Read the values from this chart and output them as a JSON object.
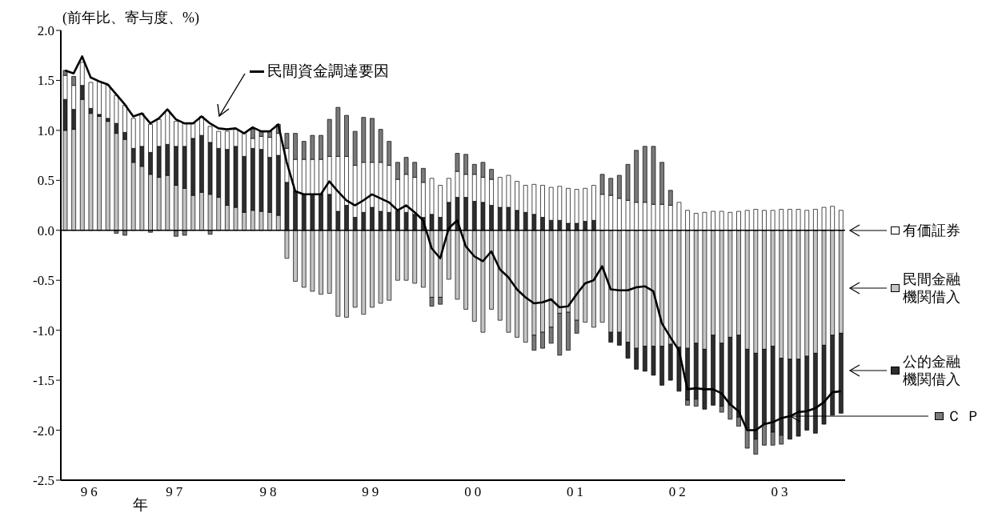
{
  "chart_data": {
    "type": "bar",
    "stacked": true,
    "legend": "right",
    "ylabel": "(前年比、寄与度、%)",
    "xlabel": "年",
    "categories": [
      null,
      null,
      null,
      "96",
      null,
      null,
      null,
      null,
      null,
      null,
      null,
      null,
      null,
      "97",
      null,
      null,
      null,
      null,
      null,
      null,
      null,
      null,
      null,
      null,
      "98",
      null,
      null,
      null,
      null,
      null,
      null,
      null,
      null,
      null,
      null,
      null,
      "99",
      null,
      null,
      null,
      null,
      null,
      null,
      null,
      null,
      null,
      null,
      null,
      "00",
      null,
      null,
      null,
      null,
      null,
      null,
      null,
      null,
      null,
      null,
      null,
      "01",
      null,
      null,
      null,
      null,
      null,
      null,
      null,
      null,
      null,
      null,
      null,
      "02",
      null,
      null,
      null,
      null,
      null,
      null,
      null,
      null,
      null,
      null,
      null,
      "03",
      null,
      null,
      null,
      null,
      null,
      null,
      null
    ],
    "series": [
      {
        "name": "民間金融機関借入",
        "color": "#c4c4c4",
        "values": [
          1.0,
          1.01,
          1.31,
          1.17,
          1.14,
          1.09,
          0.97,
          0.91,
          0.68,
          0.64,
          0.56,
          0.53,
          0.55,
          0.45,
          0.42,
          0.35,
          0.38,
          0.36,
          0.33,
          0.25,
          0.23,
          0.18,
          0.2,
          0.19,
          0.18,
          0.15,
          -0.28,
          -0.51,
          -0.57,
          -0.61,
          -0.64,
          -0.63,
          -0.86,
          -0.87,
          -0.77,
          -0.84,
          -0.77,
          -0.73,
          -0.7,
          -0.5,
          -0.5,
          -0.53,
          -0.57,
          -0.67,
          -0.67,
          -0.49,
          -0.69,
          -0.79,
          -0.91,
          -1.02,
          -0.79,
          -0.9,
          -1.02,
          -1.07,
          -1.12,
          -1.05,
          -1.02,
          -0.97,
          -0.83,
          -0.82,
          -0.9,
          -0.92,
          -0.97,
          -0.92,
          -1.02,
          -1.02,
          -1.12,
          -1.18,
          -1.16,
          -1.16,
          -1.16,
          -1.14,
          -1.17,
          -1.18,
          -1.13,
          -1.19,
          -1.05,
          -1.13,
          -1.07,
          -1.05,
          -1.19,
          -1.23,
          -1.19,
          -1.16,
          -1.28,
          -1.29,
          -1.29,
          -1.26,
          -1.23,
          -1.15,
          -1.05,
          -1.03
        ]
      },
      {
        "name": "公的金融機関借入",
        "color": "#2e2e2e",
        "values": [
          0.31,
          0.2,
          0.14,
          0.05,
          0.02,
          0.03,
          0.1,
          0.07,
          0.14,
          0.2,
          0.22,
          0.31,
          0.31,
          0.39,
          0.42,
          0.57,
          0.57,
          0.52,
          0.49,
          0.56,
          0.61,
          0.56,
          0.62,
          0.62,
          0.55,
          0.6,
          0.48,
          0.39,
          0.36,
          0.36,
          0.36,
          0.36,
          0.19,
          0.25,
          0.13,
          0.18,
          0.23,
          0.19,
          0.18,
          0.19,
          0.18,
          0.16,
          0.13,
          0.16,
          0.13,
          0.28,
          0.33,
          0.33,
          0.29,
          0.28,
          0.25,
          0.23,
          0.23,
          0.2,
          0.18,
          0.16,
          0.13,
          0.1,
          0.1,
          0.07,
          0.07,
          0.09,
          0.1,
          0,
          -0.1,
          -0.13,
          -0.16,
          -0.21,
          -0.25,
          -0.29,
          -0.39,
          -0.36,
          -0.44,
          -0.52,
          -0.56,
          -0.6,
          -0.7,
          -0.63,
          -0.68,
          -0.82,
          -0.79,
          -0.86,
          -0.74,
          -0.86,
          -0.77,
          -0.8,
          -0.77,
          -0.74,
          -0.8,
          -0.79,
          -0.8,
          -0.8
        ]
      },
      {
        "name": "有価証券",
        "color": "#ffffff",
        "values": [
          0.24,
          0.24,
          0.23,
          0.26,
          0.33,
          0.33,
          0.28,
          0.27,
          0.3,
          0.33,
          0.28,
          0.27,
          0.34,
          0.25,
          0.23,
          0.15,
          0.19,
          0.16,
          0.17,
          0.18,
          0.17,
          0.23,
          0.1,
          0.13,
          0.2,
          0.22,
          0.34,
          0.32,
          0.35,
          0.35,
          0.35,
          0.38,
          0.55,
          0.49,
          0.52,
          0.5,
          0.45,
          0.49,
          0.47,
          0.32,
          0.38,
          0.37,
          0.35,
          0.36,
          0.32,
          0.24,
          0.26,
          0.23,
          0.27,
          0.25,
          0.26,
          0.3,
          0.32,
          0.29,
          0.27,
          0.3,
          0.32,
          0.33,
          0.34,
          0.35,
          0.34,
          0.33,
          0.35,
          0.36,
          0.35,
          0.32,
          0.3,
          0.28,
          0.28,
          0.26,
          0.26,
          0.25,
          0.28,
          0.2,
          0.17,
          0.18,
          0.19,
          0.19,
          0.18,
          0.19,
          0.2,
          0.21,
          0.2,
          0.2,
          0.21,
          0.21,
          0.21,
          0.2,
          0.21,
          0.23,
          0.24,
          0.2
        ]
      },
      {
        "name": "ＣＰ",
        "color": "#7a7a7a",
        "values": [
          0.05,
          0.09,
          null,
          0,
          0,
          0,
          -0.03,
          -0.05,
          0,
          0,
          -0.02,
          0,
          0,
          -0.06,
          -0.05,
          0,
          0,
          -0.04,
          0,
          0,
          0,
          0,
          0.09,
          0.05,
          0.06,
          0.09,
          0.15,
          0.26,
          0.18,
          0.24,
          0.24,
          0.37,
          0.49,
          0.41,
          0.34,
          0.45,
          0.44,
          0.33,
          0.24,
          0.17,
          0.17,
          0.15,
          0.14,
          -0.09,
          -0.07,
          0,
          0.18,
          0.2,
          0.1,
          0.15,
          0.1,
          0,
          0,
          0,
          0,
          -0.15,
          -0.16,
          -0.16,
          -0.42,
          -0.38,
          -0.13,
          0,
          0,
          0.2,
          0.17,
          0.23,
          0.36,
          0.52,
          0.56,
          0.58,
          0.42,
          0.15,
          0,
          -0.05,
          -0.07,
          0,
          0,
          -0.06,
          -0.14,
          -0.09,
          -0.2,
          -0.15,
          -0.22,
          -0.13,
          -0.09,
          0,
          0,
          0,
          0,
          0,
          0,
          0
        ]
      },
      {
        "name": "民間資金調達要因",
        "type": "line",
        "color": "#000000",
        "values": [
          1.6,
          1.57,
          1.74,
          1.53,
          1.49,
          1.46,
          1.36,
          1.26,
          1.14,
          1.17,
          1.07,
          1.12,
          1.21,
          1.11,
          1.07,
          1.07,
          1.14,
          1.07,
          1.02,
          1.01,
          1.02,
          0.97,
          1.03,
          0.99,
          0.99,
          1.06,
          0.68,
          0.39,
          0.36,
          0.36,
          0.36,
          0.49,
          0.39,
          0.3,
          0.25,
          0.3,
          0.36,
          0.32,
          0.28,
          0.2,
          0.25,
          0.18,
          0.1,
          -0.18,
          -0.28,
          0.02,
          0.1,
          -0.16,
          -0.26,
          -0.31,
          -0.21,
          -0.39,
          -0.47,
          -0.59,
          -0.67,
          -0.73,
          -0.72,
          -0.69,
          -0.77,
          -0.76,
          -0.64,
          -0.53,
          -0.5,
          -0.36,
          -0.59,
          -0.6,
          -0.6,
          -0.57,
          -0.56,
          -0.61,
          -0.93,
          -1.07,
          -1.2,
          -1.59,
          -1.58,
          -1.59,
          -1.59,
          -1.63,
          -1.74,
          -1.81,
          -2.0,
          -2.0,
          -1.94,
          -1.92,
          -1.88,
          -1.86,
          -1.82,
          -1.81,
          -1.78,
          -1.72,
          -1.62,
          -1.61
        ]
      }
    ],
    "ylim": [
      -2.5,
      2.0
    ],
    "yticks": [
      {
        "value": 2.0,
        "label": "2.0"
      },
      {
        "value": 1.5,
        "label": "1.5"
      },
      {
        "value": 1.0,
        "label": "1.0"
      },
      {
        "value": 0.5,
        "label": "0.5"
      },
      {
        "value": 0,
        "label": "0.0"
      },
      {
        "value": -0.5,
        "label": "-0.5"
      },
      {
        "value": -1.0,
        "label": "-1.0"
      },
      {
        "value": -1.5,
        "label": "-1.5"
      },
      {
        "value": -2.0,
        "label": "-2.0"
      },
      {
        "value": -2.5,
        "label": "-2.5"
      }
    ],
    "ref_lines": [
      {
        "axis": "y",
        "value": 0,
        "color": "#000000"
      }
    ]
  }
}
